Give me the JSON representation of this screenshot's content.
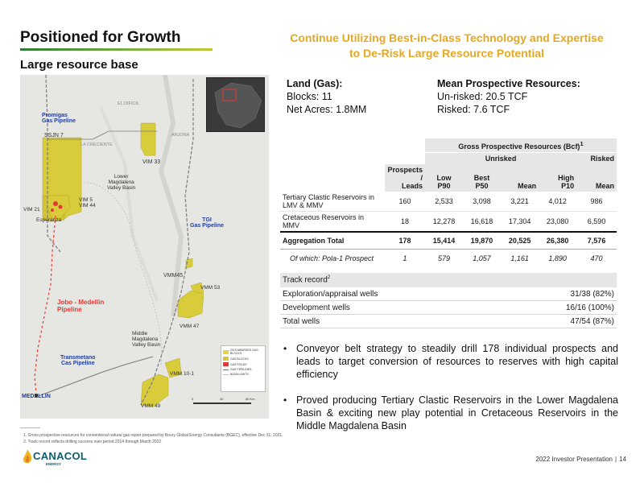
{
  "slide": {
    "title": "Positioned for Growth",
    "subtitle": "Large resource base",
    "headline_line1": "Continue Utilizing Best-in-Class Technology and Expertise",
    "headline_line2": "to De-Risk Large Resource Potential"
  },
  "land": {
    "heading": "Land (Gas):",
    "blocks": "Blocks: 11",
    "acres": "Net Acres: 1.8MM"
  },
  "resources": {
    "heading": "Mean Prospective Resources:",
    "unrisked": "Un-risked: 20.5 TCF",
    "risked": "Risked: 7.6 TCF"
  },
  "resource_table": {
    "group_header": "Gross Prospective Resources (Bcf)",
    "group_header_sup": "1",
    "unrisked_header": "Unrisked",
    "risked_header": "Risked",
    "col_prospects_1": "Prospects /",
    "col_prospects_2": "Leads",
    "col_low_1": "Low",
    "col_low_2": "P90",
    "col_best_1": "Best",
    "col_best_2": "P50",
    "col_mean": "Mean",
    "col_high_1": "High",
    "col_high_2": "P10",
    "col_risked_mean": "Mean",
    "rows": [
      {
        "label": "Tertiary Clastic Reservoirs in LMV & MMV",
        "prospects": "160",
        "low": "2,533",
        "best": "3,098",
        "mean": "3,221",
        "high": "4,012",
        "risked": "986"
      },
      {
        "label": "Cretaceous Reservoirs in MMV",
        "prospects": "18",
        "low": "12,278",
        "best": "16,618",
        "mean": "17,304",
        "high": "23,080",
        "risked": "6,590"
      }
    ],
    "total": {
      "label": "Aggregation Total",
      "prospects": "178",
      "low": "15,414",
      "best": "19,870",
      "mean": "20,525",
      "high": "26,380",
      "risked": "7,576"
    },
    "sub": {
      "label": "Of which: Pola-1 Prospect",
      "prospects": "1",
      "low": "579",
      "best": "1,057",
      "mean": "1,161",
      "high": "1,890",
      "risked": "470"
    }
  },
  "track_record": {
    "header": "Track record",
    "header_sup": "2",
    "rows": [
      {
        "label": "Exploration/appraisal wells",
        "value": "31/38 (82%)"
      },
      {
        "label": "Development wells",
        "value": "16/16 (100%)"
      },
      {
        "label": "Total wells",
        "value": "47/54 (87%)"
      }
    ]
  },
  "bullets": [
    "Conveyor belt strategy to steadily drill 178 individual prospects and leads to target conversion of resources to reserves with high capital efficiency",
    "Proved producing Tertiary Clastic Reservoirs in the Lower Magdalena Basin & exciting new play potential in Cretaceous Reservoirs in the Middle Magdalena Basin"
  ],
  "map": {
    "labels": {
      "promigas": "Promigas\nGas Pipeline",
      "ssjn7": "SSJN 7",
      "la_creciente": "LA CRECIENTE",
      "el_difcil": "EL DIFICIL",
      "arjona": "ARJONA",
      "vim33": "VIM 33",
      "lower_basin": "Lower\nMagdalena\nValley Basin",
      "vim5": "VIM 5",
      "vim44": "VIM 44",
      "vim21": "VIM 21",
      "esperanza": "Esperanza",
      "tgi": "TGI\nGas Pipeline",
      "vmm45": "VMM45",
      "vmm53": "VMM 53",
      "jobo": "Jobo - Medellin\nPipeline",
      "vmm47": "VMM 47",
      "middle_basin": "Middle\nMagdalena\nValley Basin",
      "transmetano": "Transmetano\nCas Pipeline",
      "vmm10": "VMM 10-1",
      "medellin": "MEDELLIN",
      "vmm49": "VMM 49"
    },
    "legend": [
      {
        "label": "2020 AWARDED GAS BLOCKS",
        "color": "#e8d540"
      },
      {
        "label": "GAS BLOCKS",
        "color": "#d8c53a"
      },
      {
        "label": "GAS FIELDS",
        "color": "#e53935"
      },
      {
        "label": "GAS PIPELINES",
        "color": "#777777"
      },
      {
        "label": "BASIN LIMITS",
        "color": "#bbbbbb"
      }
    ],
    "scale": {
      "zero": "0",
      "mid": "40",
      "end": "80 Km"
    }
  },
  "footnotes": [
    "1.   Gross prospective resources for conventional natural gas report prepared by Boury Global Energy Consultants (BGEC), effective Dec 31, 2021.",
    "2.   Track record reflects drilling success over period 2014 through March 2022."
  ],
  "logo": {
    "name": "CANACOL",
    "tag": "ENERGY"
  },
  "footer": {
    "text": "2022 Investor Presentation",
    "page": "14"
  },
  "colors": {
    "accent": "#e5a823",
    "block_yellow": "#d9cc3b",
    "pipeline_red": "#e53935",
    "brand_teal": "#0d5e6b"
  }
}
